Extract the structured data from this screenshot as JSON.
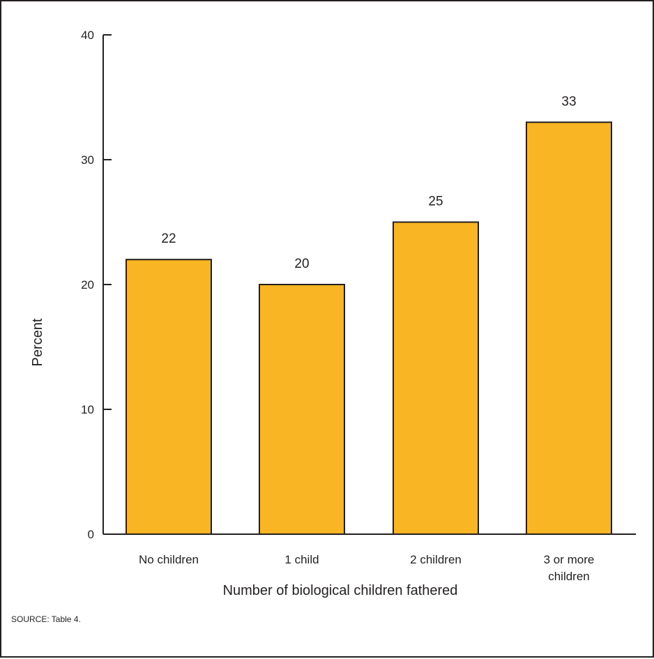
{
  "chart_data": {
    "type": "bar",
    "categories": [
      [
        "No children"
      ],
      [
        "1 child"
      ],
      [
        "2 children"
      ],
      [
        "3 or more",
        "children"
      ]
    ],
    "values": [
      22,
      20,
      25,
      33
    ],
    "data_labels": [
      "22",
      "20",
      "25",
      "33"
    ],
    "xlabel": "Number of biological children fathered",
    "ylabel": "Percent",
    "ylim": [
      0,
      40
    ],
    "yticks": [
      0,
      10,
      20,
      30,
      40
    ],
    "grid": false,
    "legend": "none",
    "bar_color": "#f9b523",
    "line_color": "#231f20"
  },
  "source_note": "SOURCE: Table 4."
}
